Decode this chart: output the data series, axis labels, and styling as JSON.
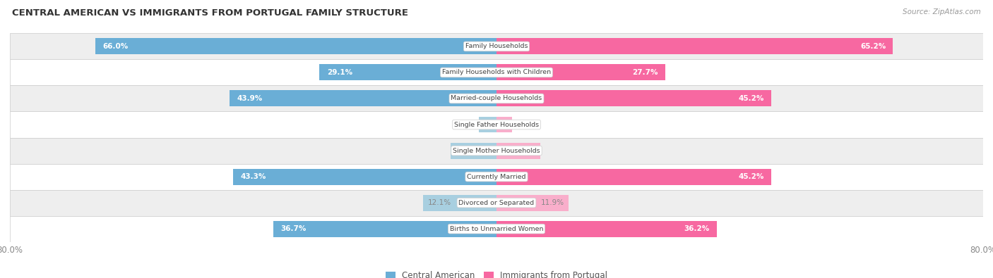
{
  "title": "CENTRAL AMERICAN VS IMMIGRANTS FROM PORTUGAL FAMILY STRUCTURE",
  "source": "Source: ZipAtlas.com",
  "categories": [
    "Family Households",
    "Family Households with Children",
    "Married-couple Households",
    "Single Father Households",
    "Single Mother Households",
    "Currently Married",
    "Divorced or Separated",
    "Births to Unmarried Women"
  ],
  "central_american": [
    66.0,
    29.1,
    43.9,
    2.9,
    7.6,
    43.3,
    12.1,
    36.7
  ],
  "portugal": [
    65.2,
    27.7,
    45.2,
    2.6,
    7.2,
    45.2,
    11.9,
    36.2
  ],
  "max_val": 80.0,
  "color_ca": "#6aaed6",
  "color_pt": "#f768a1",
  "color_ca_light": "#a8cfe0",
  "color_pt_light": "#f9aecb",
  "row_colors": [
    "#eeeeee",
    "#ffffff",
    "#eeeeee",
    "#ffffff",
    "#eeeeee",
    "#ffffff",
    "#eeeeee",
    "#ffffff"
  ],
  "row_border_color": "#cccccc",
  "label_white": "#ffffff",
  "label_gray": "#888888",
  "center_box_color": "#ffffff",
  "center_box_edge": "#cccccc",
  "legend_ca": "Central American",
  "legend_pt": "Immigrants from Portugal",
  "tick_label_color": "#888888",
  "title_color": "#333333",
  "source_color": "#999999"
}
